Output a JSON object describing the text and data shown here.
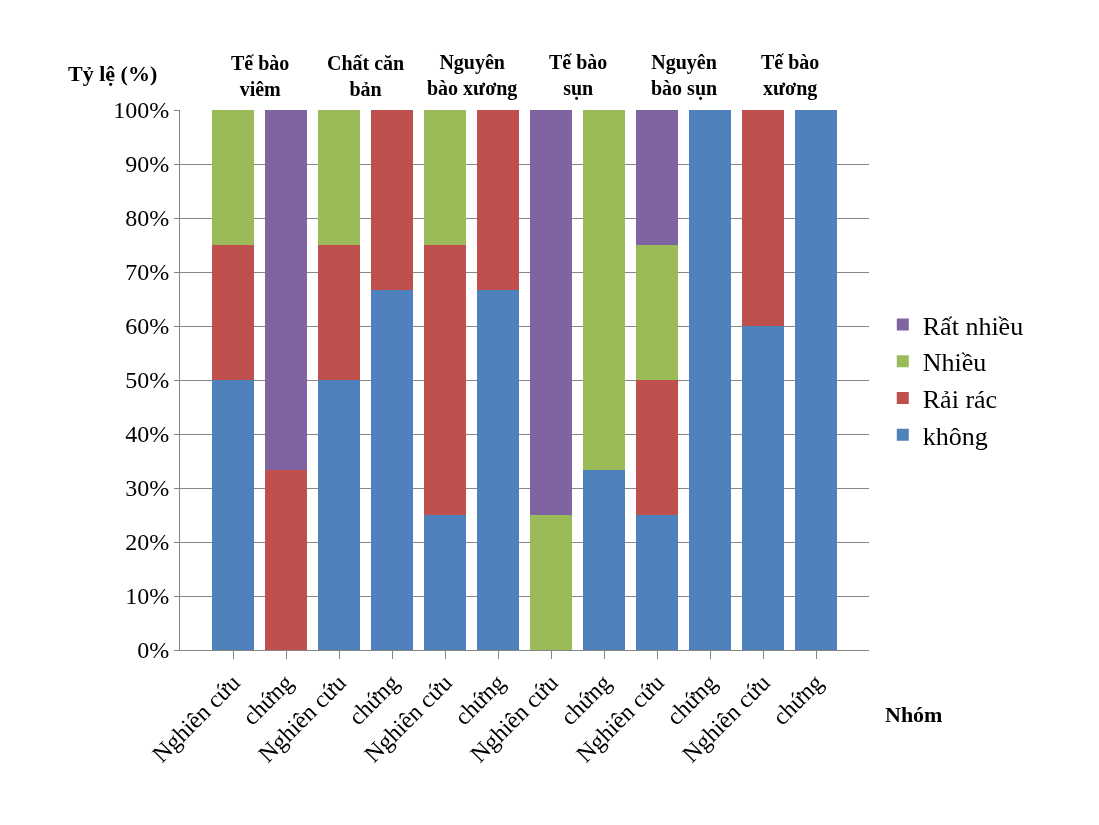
{
  "chart_data": {
    "type": "bar",
    "stacked": true,
    "ylabel": "Tỷ lệ (%)",
    "xlabel": "Nhóm",
    "categories": [
      "Nghiên cứu",
      "chứng",
      "Nghiên cứu",
      "chứng",
      "Nghiên cứu",
      "chứng",
      "Nghiên cứu",
      "chứng",
      "Nghiên cứu",
      "chứng",
      "Nghiên cứu",
      "chứng"
    ],
    "series": [
      {
        "name": "không",
        "color": "#4f81bd",
        "values": [
          50,
          0,
          50,
          66.7,
          25,
          66.7,
          0,
          33.3,
          25,
          100,
          60,
          100
        ]
      },
      {
        "name": "Rải rác",
        "color": "#c0504d",
        "values": [
          25,
          33.3,
          25,
          33.3,
          50,
          33.3,
          0,
          0,
          25,
          0,
          40,
          0
        ]
      },
      {
        "name": "Nhiều",
        "color": "#9bbb59",
        "values": [
          25,
          0,
          25,
          0,
          25,
          0,
          25,
          66.7,
          25,
          0,
          0,
          0
        ]
      },
      {
        "name": "Rất nhiều",
        "color": "#8064a2",
        "values": [
          0,
          66.7,
          0,
          0,
          0,
          0,
          75,
          0,
          25,
          0,
          0,
          0
        ]
      }
    ],
    "annotations": [
      "Tế bào\nviêm",
      "Chất căn\nbản",
      "Nguyên\nbào xương",
      "Tế bào\nsụn",
      "Nguyên\nbào sụn",
      "Tế bào\nxương"
    ],
    "ylim": [
      0,
      100
    ],
    "yticks": [
      {
        "value": 0,
        "label": "0%"
      },
      {
        "value": 10,
        "label": "10%"
      },
      {
        "value": 20,
        "label": "20%"
      },
      {
        "value": 30,
        "label": "30%"
      },
      {
        "value": 40,
        "label": "40%"
      },
      {
        "value": 50,
        "label": "50%"
      },
      {
        "value": 60,
        "label": "60%"
      },
      {
        "value": 70,
        "label": "70%"
      },
      {
        "value": 80,
        "label": "80%"
      },
      {
        "value": 90,
        "label": "90%"
      },
      {
        "value": 100,
        "label": "100%"
      }
    ],
    "grid": "y",
    "legend": "right"
  }
}
